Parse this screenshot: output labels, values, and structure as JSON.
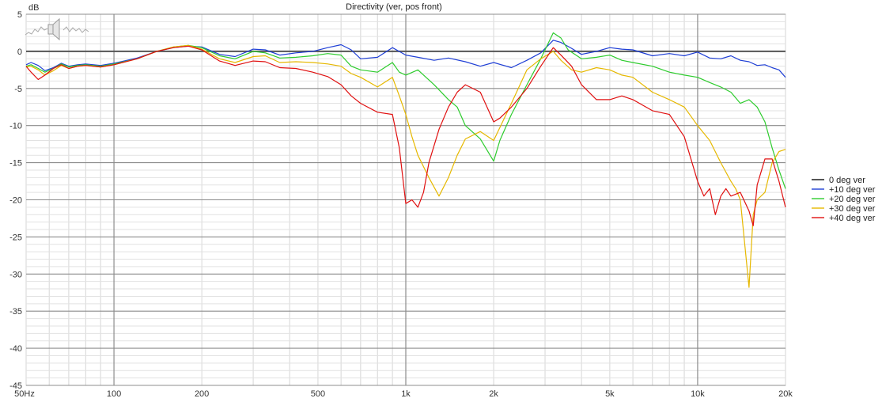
{
  "chart_data": {
    "type": "line",
    "title": "Directivity (ver, pos front)",
    "ylabel": "dB",
    "x_scale": "log",
    "xlim": [
      50,
      20000
    ],
    "ylim": [
      -45,
      5
    ],
    "grid": true,
    "legend_position": "right",
    "x_tick_labels": [
      {
        "value": 50,
        "label": "50Hz"
      },
      {
        "value": 100,
        "label": "100"
      },
      {
        "value": 200,
        "label": "200"
      },
      {
        "value": 500,
        "label": "500"
      },
      {
        "value": 1000,
        "label": "1k"
      },
      {
        "value": 2000,
        "label": "2k"
      },
      {
        "value": 5000,
        "label": "5k"
      },
      {
        "value": 10000,
        "label": "10k"
      },
      {
        "value": 20000,
        "label": "20k"
      }
    ],
    "y_ticks": [
      5,
      0,
      -5,
      -10,
      -15,
      -20,
      -25,
      -30,
      -35,
      -40,
      -45
    ],
    "series": [
      {
        "name": "0 deg ver",
        "color": "#555555",
        "x": [
          50,
          20000
        ],
        "y": [
          0,
          0
        ]
      },
      {
        "name": "+10 deg ver",
        "color": "#1f3fd6",
        "x": [
          50,
          52,
          55,
          58,
          62,
          66,
          70,
          75,
          80,
          90,
          100,
          120,
          140,
          160,
          180,
          200,
          230,
          260,
          300,
          330,
          370,
          420,
          480,
          540,
          600,
          650,
          700,
          800,
          900,
          1000,
          1100,
          1250,
          1400,
          1600,
          1800,
          2000,
          2300,
          2600,
          2900,
          3200,
          3400,
          3700,
          4000,
          4500,
          5000,
          5500,
          6000,
          7000,
          8000,
          9000,
          10000,
          11000,
          12000,
          13000,
          14000,
          15000,
          16000,
          17000,
          18000,
          19000,
          20000
        ],
        "y": [
          -1.8,
          -1.5,
          -1.9,
          -2.6,
          -2.2,
          -1.6,
          -2.0,
          -1.8,
          -1.7,
          -1.9,
          -1.6,
          -0.9,
          0.0,
          0.5,
          0.7,
          0.6,
          -0.4,
          -0.7,
          0.3,
          0.2,
          -0.5,
          -0.2,
          0.0,
          0.5,
          0.9,
          0.2,
          -1.0,
          -0.8,
          0.5,
          -0.5,
          -0.8,
          -1.2,
          -0.9,
          -1.4,
          -2.0,
          -1.5,
          -2.2,
          -1.2,
          -0.2,
          1.5,
          1.2,
          0.4,
          -0.4,
          0.0,
          0.5,
          0.3,
          0.2,
          -0.6,
          -0.3,
          -0.6,
          -0.1,
          -0.9,
          -1.0,
          -0.6,
          -1.2,
          -1.4,
          -1.9,
          -1.8,
          -2.2,
          -2.5,
          -3.5
        ]
      },
      {
        "name": "+20 deg ver",
        "color": "#2ecc2e",
        "x": [
          50,
          52,
          55,
          58,
          62,
          66,
          70,
          75,
          80,
          90,
          100,
          120,
          140,
          160,
          180,
          200,
          230,
          260,
          300,
          330,
          370,
          420,
          480,
          540,
          600,
          650,
          700,
          800,
          900,
          950,
          1000,
          1100,
          1250,
          1400,
          1500,
          1600,
          1800,
          2000,
          2100,
          2300,
          2600,
          2900,
          3200,
          3400,
          3600,
          4000,
          4500,
          5000,
          5500,
          6000,
          7000,
          8000,
          9000,
          10000,
          11000,
          12000,
          13000,
          14000,
          15000,
          16000,
          17000,
          18000,
          19000,
          20000
        ],
        "y": [
          -2.0,
          -1.8,
          -2.3,
          -2.8,
          -2.3,
          -1.7,
          -2.1,
          -1.9,
          -1.8,
          -2.0,
          -1.7,
          -1.0,
          0.0,
          0.6,
          0.8,
          0.5,
          -0.6,
          -1.0,
          0.0,
          -0.2,
          -0.9,
          -0.8,
          -0.6,
          -0.3,
          -0.5,
          -2.0,
          -2.5,
          -2.8,
          -1.5,
          -2.8,
          -3.2,
          -2.5,
          -4.5,
          -6.5,
          -7.5,
          -10.0,
          -11.8,
          -14.8,
          -12.0,
          -8.5,
          -4.5,
          -1.0,
          2.5,
          1.8,
          0.2,
          -1.0,
          -0.8,
          -0.5,
          -1.2,
          -1.5,
          -2.0,
          -2.8,
          -3.2,
          -3.5,
          -4.2,
          -4.8,
          -5.5,
          -7.0,
          -6.5,
          -7.5,
          -9.5,
          -13.0,
          -16.0,
          -18.5
        ]
      },
      {
        "name": "+30 deg ver",
        "color": "#e6b800",
        "x": [
          50,
          52,
          55,
          58,
          62,
          66,
          70,
          75,
          80,
          90,
          100,
          120,
          140,
          160,
          180,
          200,
          230,
          260,
          300,
          330,
          370,
          420,
          480,
          540,
          600,
          650,
          700,
          800,
          900,
          950,
          1000,
          1050,
          1100,
          1200,
          1300,
          1400,
          1500,
          1600,
          1800,
          2000,
          2300,
          2600,
          2900,
          3200,
          3400,
          3700,
          4000,
          4500,
          5000,
          5500,
          6000,
          7000,
          8000,
          9000,
          10000,
          11000,
          12000,
          13000,
          13500,
          14000,
          14500,
          15000,
          15500,
          16000,
          17000,
          18000,
          19000,
          20000
        ],
        "y": [
          -2.1,
          -2.0,
          -2.5,
          -3.2,
          -2.6,
          -1.9,
          -2.3,
          -2.0,
          -1.9,
          -2.1,
          -1.8,
          -1.0,
          0.0,
          0.6,
          0.8,
          0.3,
          -1.0,
          -1.5,
          -0.7,
          -0.6,
          -1.5,
          -1.4,
          -1.5,
          -1.7,
          -2.0,
          -3.0,
          -3.5,
          -4.8,
          -3.5,
          -6.0,
          -8.5,
          -11.5,
          -14.0,
          -17.0,
          -19.5,
          -17.0,
          -14.0,
          -11.8,
          -10.8,
          -12.0,
          -7.0,
          -2.5,
          -1.0,
          0.0,
          -1.2,
          -2.5,
          -2.8,
          -2.2,
          -2.5,
          -3.2,
          -3.5,
          -5.5,
          -6.5,
          -7.5,
          -10.0,
          -12.0,
          -15.0,
          -17.5,
          -18.5,
          -20.0,
          -26.0,
          -31.8,
          -22.0,
          -20.0,
          -19.0,
          -15.0,
          -13.5,
          -13.2
        ]
      },
      {
        "name": "+40 deg ver",
        "color": "#e01010",
        "x": [
          50,
          52,
          55,
          58,
          62,
          66,
          70,
          75,
          80,
          90,
          100,
          120,
          140,
          160,
          180,
          200,
          230,
          260,
          300,
          330,
          370,
          420,
          480,
          540,
          600,
          650,
          700,
          800,
          900,
          950,
          1000,
          1050,
          1100,
          1150,
          1200,
          1300,
          1400,
          1500,
          1600,
          1800,
          2000,
          2100,
          2300,
          2600,
          2900,
          3200,
          3400,
          3700,
          4000,
          4500,
          5000,
          5500,
          6000,
          7000,
          8000,
          9000,
          10000,
          10500,
          11000,
          11500,
          12000,
          12500,
          13000,
          14000,
          15000,
          15500,
          16000,
          17000,
          18000,
          19000,
          20000
        ],
        "y": [
          -2.0,
          -2.8,
          -3.8,
          -3.2,
          -2.3,
          -1.8,
          -2.3,
          -2.0,
          -1.9,
          -2.1,
          -1.8,
          -1.0,
          0.0,
          0.5,
          0.7,
          0.2,
          -1.3,
          -1.9,
          -1.3,
          -1.4,
          -2.2,
          -2.3,
          -2.8,
          -3.4,
          -4.5,
          -6.0,
          -7.0,
          -8.2,
          -8.5,
          -13.0,
          -20.5,
          -20.0,
          -21.0,
          -19.0,
          -15.0,
          -10.5,
          -7.5,
          -5.5,
          -4.5,
          -5.5,
          -9.5,
          -9.0,
          -7.5,
          -5.0,
          -2.0,
          0.5,
          -0.5,
          -2.0,
          -4.5,
          -6.5,
          -6.5,
          -6.0,
          -6.5,
          -8.0,
          -8.5,
          -11.5,
          -17.5,
          -19.5,
          -18.5,
          -22.0,
          -19.5,
          -18.5,
          -19.5,
          -19.0,
          -21.5,
          -23.5,
          -18.0,
          -14.5,
          -14.5,
          -17.5,
          -21.0
        ]
      }
    ]
  }
}
